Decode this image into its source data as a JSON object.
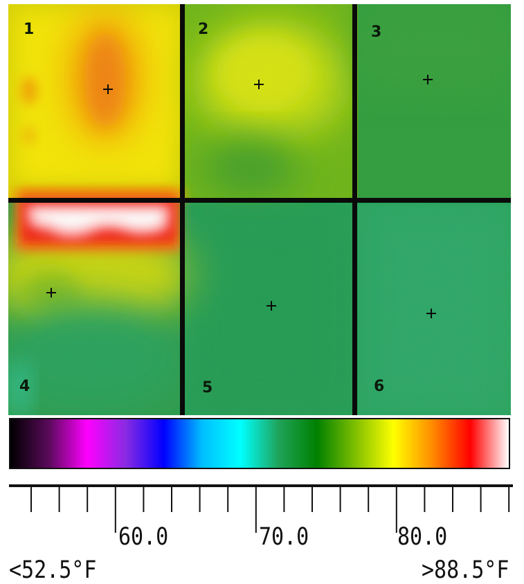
{
  "thermal_image": {
    "zones": [
      {
        "label": "1"
      },
      {
        "label": "2"
      },
      {
        "label": "3"
      },
      {
        "label": "4"
      },
      {
        "label": "5"
      },
      {
        "label": "6"
      }
    ]
  },
  "color_scale": {
    "colors": [
      "#000000",
      "#5a0a5a",
      "#ff00ff",
      "#8a2be2",
      "#0000ff",
      "#00bfff",
      "#00ffff",
      "#1fa35a",
      "#008000",
      "#7fbf00",
      "#ffff00",
      "#ff8c00",
      "#ff0000",
      "#ffffff"
    ],
    "tick_labels": [
      "60.0",
      "70.0",
      "80.0"
    ],
    "min_label": "<52.5°F",
    "max_label": ">88.5°F"
  }
}
